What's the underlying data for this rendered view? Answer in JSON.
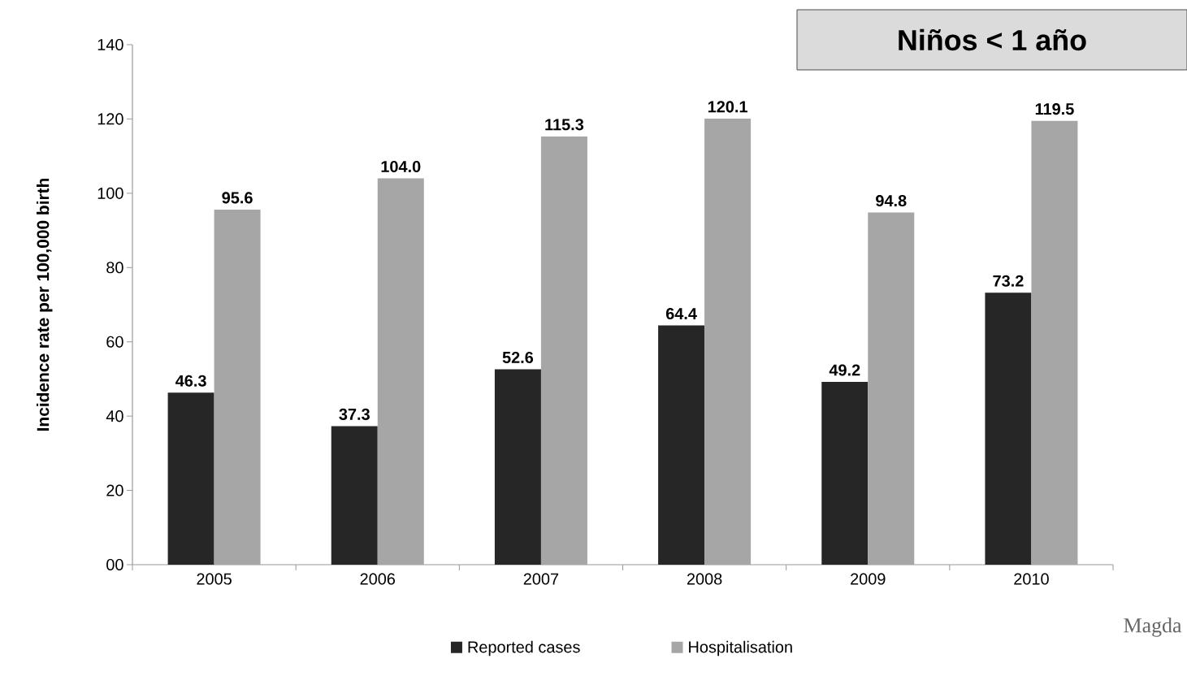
{
  "chart_data": {
    "type": "bar",
    "title": "Niños < 1 año",
    "ylabel": "Incidence rate per 100,000 birth",
    "categories": [
      "2005",
      "2006",
      "2007",
      "2008",
      "2009",
      "2010"
    ],
    "series": [
      {
        "name": "Reported cases",
        "color": "#262626",
        "values": [
          46.3,
          37.3,
          52.6,
          64.4,
          49.2,
          73.2
        ],
        "value_labels": [
          "46.3",
          "37.3",
          "52.6",
          "64.4",
          "49.2",
          "73.2"
        ]
      },
      {
        "name": "Hospitalisation",
        "color": "#a6a6a6",
        "values": [
          95.6,
          104.0,
          115.3,
          120.1,
          94.8,
          119.5
        ],
        "value_labels": [
          "95.6",
          "104.0",
          "115.3",
          "120.1",
          "94.8",
          "119.5"
        ]
      }
    ],
    "ylim": [
      0,
      140
    ],
    "yticks": [
      {
        "value": 0,
        "label": "00"
      },
      20,
      40,
      60,
      80,
      100,
      120,
      140
    ],
    "legend": "bottom",
    "annotations": [
      "Magda"
    ]
  }
}
